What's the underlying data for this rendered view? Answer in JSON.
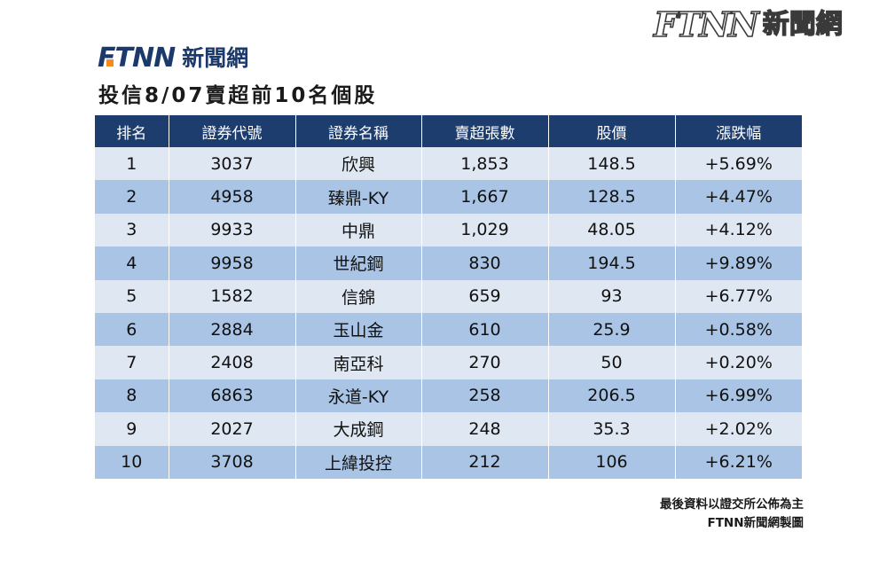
{
  "watermark": {
    "mark": "FTNN",
    "name": "新聞網"
  },
  "logo": {
    "mark": "FTNN",
    "name": "新聞網"
  },
  "title": "投信8/07賣超前10名個股",
  "colors": {
    "header_bg": "#1c3d6e",
    "row_light": "#dfe7f2",
    "row_dark": "#a9c4e4",
    "brand_orange": "#f28c1e"
  },
  "table": {
    "headers": [
      "排名",
      "證券代號",
      "證券名稱",
      "賣超張數",
      "股價",
      "漲跌幅"
    ],
    "rows": [
      [
        "1",
        "3037",
        "欣興",
        "1,853",
        "148.5",
        "+5.69%"
      ],
      [
        "2",
        "4958",
        "臻鼎-KY",
        "1,667",
        "128.5",
        "+4.47%"
      ],
      [
        "3",
        "9933",
        "中鼎",
        "1,029",
        "48.05",
        "+4.12%"
      ],
      [
        "4",
        "9958",
        "世紀鋼",
        "830",
        "194.5",
        "+9.89%"
      ],
      [
        "5",
        "1582",
        "信錦",
        "659",
        "93",
        "+6.77%"
      ],
      [
        "6",
        "2884",
        "玉山金",
        "610",
        "25.9",
        "+0.58%"
      ],
      [
        "7",
        "2408",
        "南亞科",
        "270",
        "50",
        "+0.20%"
      ],
      [
        "8",
        "6863",
        "永道-KY",
        "258",
        "206.5",
        "+6.99%"
      ],
      [
        "9",
        "2027",
        "大成鋼",
        "248",
        "35.3",
        "+2.02%"
      ],
      [
        "10",
        "3708",
        "上緯投控",
        "212",
        "106",
        "+6.21%"
      ]
    ]
  },
  "footer": {
    "source": "最後資料以證交所公佈為主",
    "credit": "FTNN新聞網製圖"
  }
}
